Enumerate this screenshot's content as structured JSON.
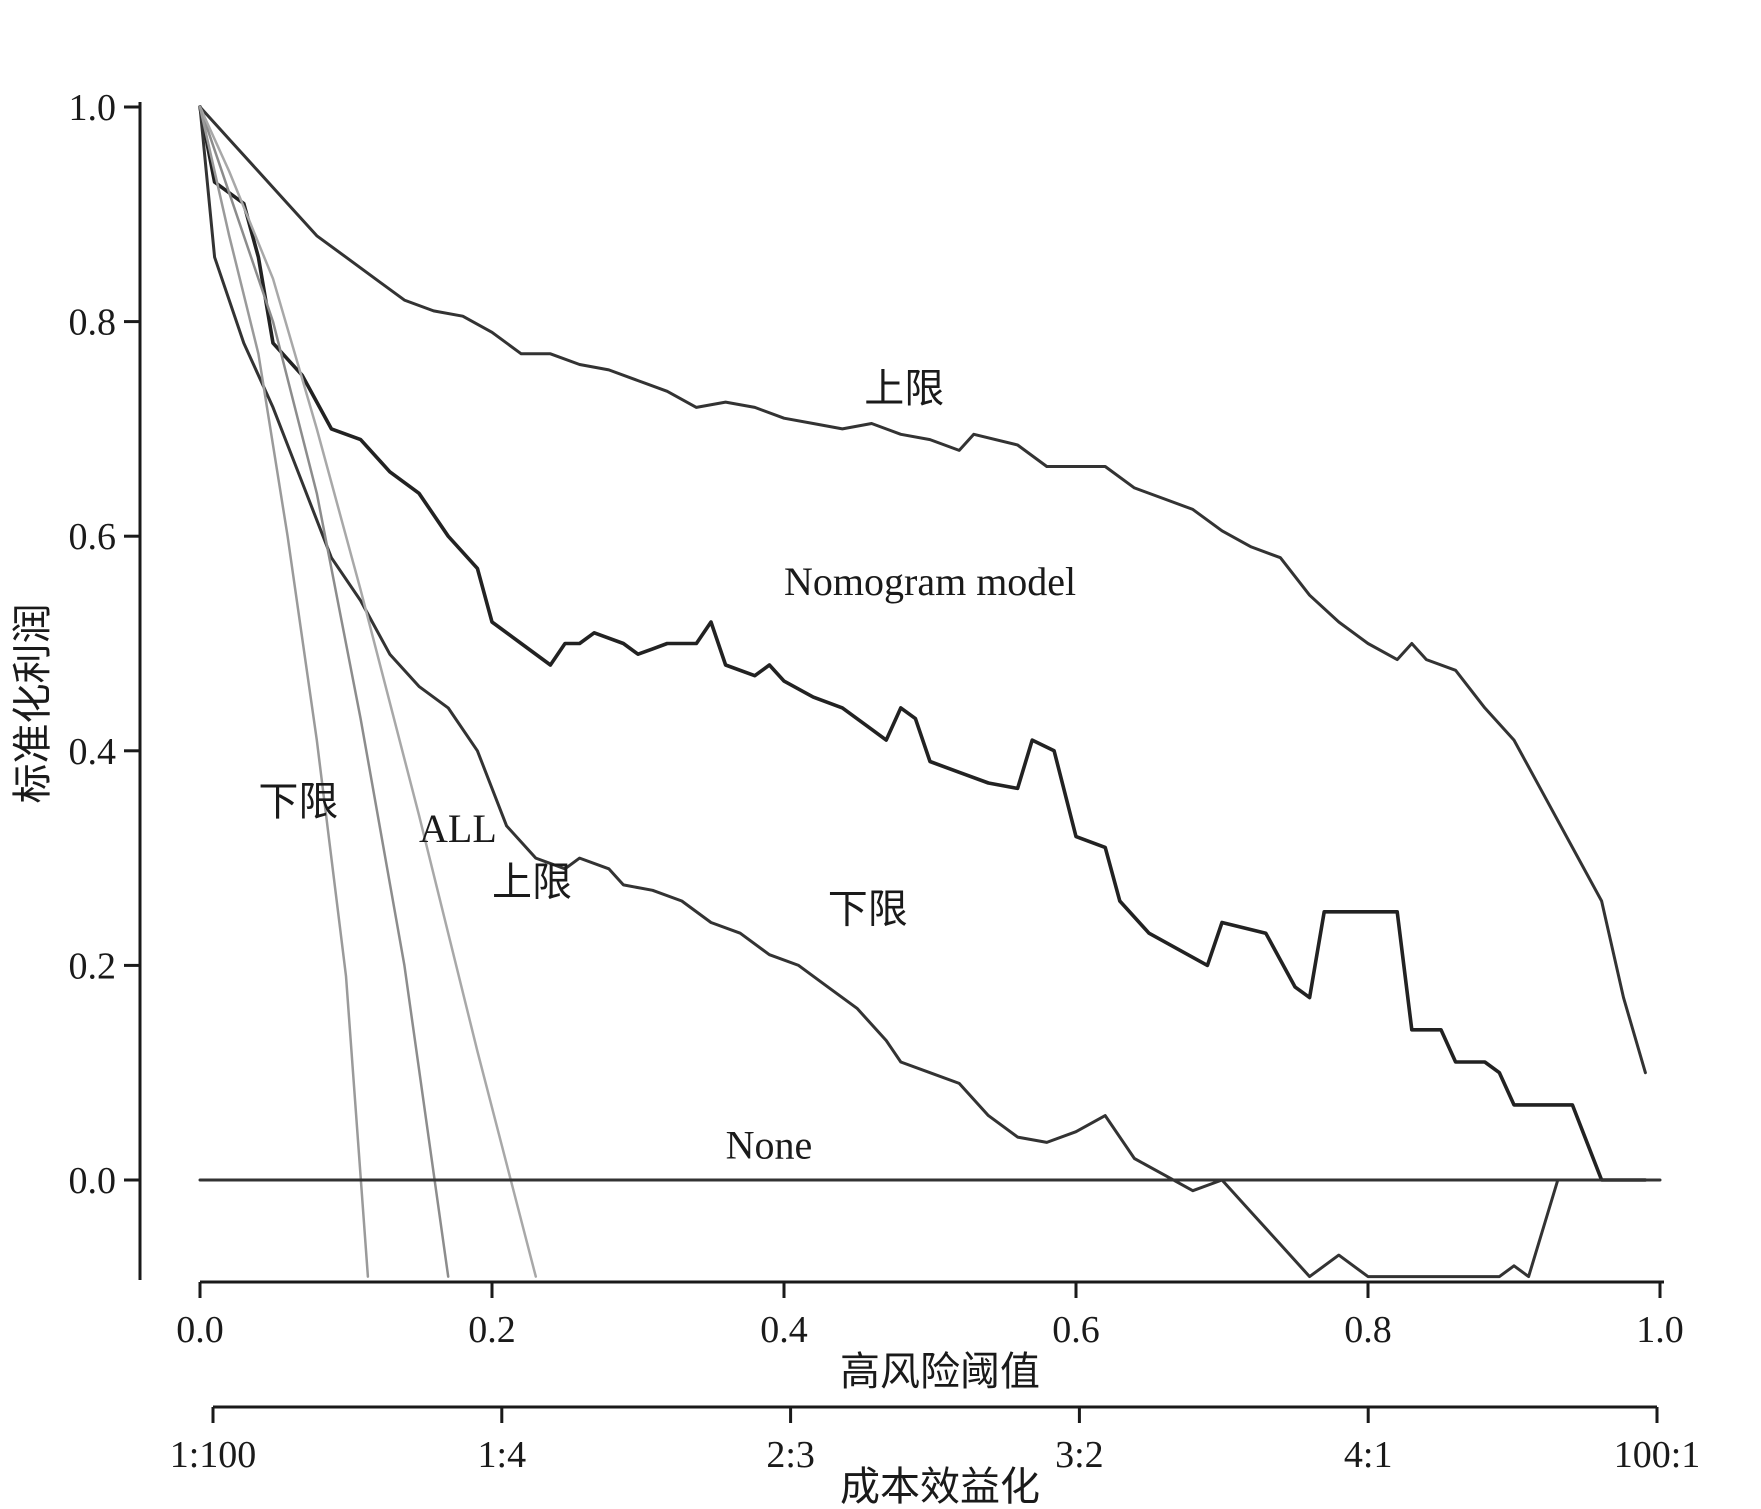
{
  "chart_data": {
    "type": "line",
    "title": "",
    "xlabel": "高风险阈值",
    "ylabel": "标准化利润",
    "x2label": "成本效益化",
    "xlim": [
      0,
      1
    ],
    "ylim": [
      -0.09,
      1.0
    ],
    "x_ticks": [
      "0.0",
      "0.2",
      "0.4",
      "0.6",
      "0.8",
      "1.0"
    ],
    "y_ticks": [
      "0.0",
      "0.2",
      "0.4",
      "0.6",
      "0.8",
      "1.0"
    ],
    "x2_ticks": [
      "1:100",
      "1:4",
      "2:3",
      "3:2",
      "4:1",
      "100:1"
    ],
    "grid": false,
    "series": [
      {
        "label": "上限",
        "color": "#333333",
        "points": [
          [
            0.0,
            1.0
          ],
          [
            0.02,
            0.97
          ],
          [
            0.04,
            0.94
          ],
          [
            0.06,
            0.91
          ],
          [
            0.08,
            0.88
          ],
          [
            0.1,
            0.86
          ],
          [
            0.12,
            0.84
          ],
          [
            0.14,
            0.82
          ],
          [
            0.16,
            0.81
          ],
          [
            0.18,
            0.805
          ],
          [
            0.2,
            0.79
          ],
          [
            0.22,
            0.77
          ],
          [
            0.24,
            0.77
          ],
          [
            0.26,
            0.76
          ],
          [
            0.28,
            0.755
          ],
          [
            0.3,
            0.745
          ],
          [
            0.32,
            0.735
          ],
          [
            0.34,
            0.72
          ],
          [
            0.36,
            0.725
          ],
          [
            0.38,
            0.72
          ],
          [
            0.4,
            0.71
          ],
          [
            0.42,
            0.705
          ],
          [
            0.44,
            0.7
          ],
          [
            0.46,
            0.705
          ],
          [
            0.48,
            0.695
          ],
          [
            0.5,
            0.69
          ],
          [
            0.52,
            0.68
          ],
          [
            0.53,
            0.695
          ],
          [
            0.56,
            0.685
          ],
          [
            0.58,
            0.665
          ],
          [
            0.6,
            0.665
          ],
          [
            0.62,
            0.665
          ],
          [
            0.64,
            0.645
          ],
          [
            0.66,
            0.635
          ],
          [
            0.68,
            0.625
          ],
          [
            0.7,
            0.605
          ],
          [
            0.72,
            0.59
          ],
          [
            0.74,
            0.58
          ],
          [
            0.76,
            0.545
          ],
          [
            0.78,
            0.52
          ],
          [
            0.8,
            0.5
          ],
          [
            0.82,
            0.485
          ],
          [
            0.83,
            0.5
          ],
          [
            0.84,
            0.485
          ],
          [
            0.86,
            0.475
          ],
          [
            0.88,
            0.44
          ],
          [
            0.9,
            0.41
          ],
          [
            0.92,
            0.36
          ],
          [
            0.94,
            0.31
          ],
          [
            0.96,
            0.26
          ],
          [
            0.975,
            0.17
          ],
          [
            0.99,
            0.1
          ]
        ]
      },
      {
        "label": "Nomogram model",
        "color": "#222222",
        "points": [
          [
            0.0,
            1.0
          ],
          [
            0.01,
            0.93
          ],
          [
            0.03,
            0.91
          ],
          [
            0.04,
            0.86
          ],
          [
            0.05,
            0.78
          ],
          [
            0.07,
            0.75
          ],
          [
            0.09,
            0.7
          ],
          [
            0.11,
            0.69
          ],
          [
            0.13,
            0.66
          ],
          [
            0.15,
            0.64
          ],
          [
            0.17,
            0.6
          ],
          [
            0.19,
            0.57
          ],
          [
            0.2,
            0.52
          ],
          [
            0.22,
            0.5
          ],
          [
            0.24,
            0.48
          ],
          [
            0.25,
            0.5
          ],
          [
            0.26,
            0.5
          ],
          [
            0.27,
            0.51
          ],
          [
            0.29,
            0.5
          ],
          [
            0.3,
            0.49
          ],
          [
            0.31,
            0.495
          ],
          [
            0.32,
            0.5
          ],
          [
            0.34,
            0.5
          ],
          [
            0.35,
            0.52
          ],
          [
            0.36,
            0.48
          ],
          [
            0.38,
            0.47
          ],
          [
            0.39,
            0.48
          ],
          [
            0.4,
            0.465
          ],
          [
            0.42,
            0.45
          ],
          [
            0.44,
            0.44
          ],
          [
            0.46,
            0.42
          ],
          [
            0.47,
            0.41
          ],
          [
            0.48,
            0.44
          ],
          [
            0.49,
            0.43
          ],
          [
            0.5,
            0.39
          ],
          [
            0.52,
            0.38
          ],
          [
            0.54,
            0.37
          ],
          [
            0.56,
            0.365
          ],
          [
            0.57,
            0.41
          ],
          [
            0.585,
            0.4
          ],
          [
            0.6,
            0.32
          ],
          [
            0.62,
            0.31
          ],
          [
            0.63,
            0.26
          ],
          [
            0.65,
            0.23
          ],
          [
            0.67,
            0.215
          ],
          [
            0.69,
            0.2
          ],
          [
            0.7,
            0.24
          ],
          [
            0.73,
            0.23
          ],
          [
            0.75,
            0.18
          ],
          [
            0.76,
            0.17
          ],
          [
            0.77,
            0.25
          ],
          [
            0.82,
            0.25
          ],
          [
            0.83,
            0.14
          ],
          [
            0.85,
            0.14
          ],
          [
            0.86,
            0.11
          ],
          [
            0.88,
            0.11
          ],
          [
            0.89,
            0.1
          ],
          [
            0.9,
            0.07
          ],
          [
            0.94,
            0.07
          ],
          [
            0.96,
            0.0
          ],
          [
            0.99,
            0.0
          ]
        ]
      },
      {
        "label": "下限",
        "color": "#333333",
        "points": [
          [
            0.0,
            1.0
          ],
          [
            0.01,
            0.86
          ],
          [
            0.03,
            0.78
          ],
          [
            0.05,
            0.72
          ],
          [
            0.07,
            0.65
          ],
          [
            0.09,
            0.58
          ],
          [
            0.11,
            0.54
          ],
          [
            0.13,
            0.49
          ],
          [
            0.15,
            0.46
          ],
          [
            0.17,
            0.44
          ],
          [
            0.19,
            0.4
          ],
          [
            0.21,
            0.33
          ],
          [
            0.23,
            0.3
          ],
          [
            0.25,
            0.29
          ],
          [
            0.26,
            0.3
          ],
          [
            0.28,
            0.29
          ],
          [
            0.29,
            0.275
          ],
          [
            0.31,
            0.27
          ],
          [
            0.33,
            0.26
          ],
          [
            0.35,
            0.24
          ],
          [
            0.37,
            0.23
          ],
          [
            0.39,
            0.21
          ],
          [
            0.41,
            0.2
          ],
          [
            0.43,
            0.18
          ],
          [
            0.45,
            0.16
          ],
          [
            0.47,
            0.13
          ],
          [
            0.48,
            0.11
          ],
          [
            0.5,
            0.1
          ],
          [
            0.52,
            0.09
          ],
          [
            0.54,
            0.06
          ],
          [
            0.56,
            0.04
          ],
          [
            0.58,
            0.035
          ],
          [
            0.6,
            0.045
          ],
          [
            0.62,
            0.06
          ],
          [
            0.64,
            0.02
          ],
          [
            0.66,
            0.005
          ],
          [
            0.68,
            -0.01
          ],
          [
            0.7,
            0.0
          ],
          [
            0.72,
            -0.03
          ],
          [
            0.74,
            -0.06
          ],
          [
            0.76,
            -0.09
          ],
          [
            0.78,
            -0.07
          ],
          [
            0.8,
            -0.09
          ],
          [
            0.89,
            -0.09
          ],
          [
            0.9,
            -0.08
          ],
          [
            0.91,
            -0.09
          ],
          [
            0.93,
            0.0
          ]
        ]
      },
      {
        "label": "ALL",
        "color": "#8c8c8c",
        "points": [
          [
            0.0,
            1.0
          ],
          [
            0.02,
            0.92
          ],
          [
            0.05,
            0.8
          ],
          [
            0.08,
            0.64
          ],
          [
            0.11,
            0.43
          ],
          [
            0.14,
            0.2
          ],
          [
            0.17,
            -0.09
          ]
        ]
      },
      {
        "label": "上限",
        "color": "#a8a8a8",
        "points": [
          [
            0.0,
            1.0
          ],
          [
            0.02,
            0.94
          ],
          [
            0.05,
            0.84
          ],
          [
            0.08,
            0.7
          ],
          [
            0.11,
            0.55
          ],
          [
            0.15,
            0.34
          ],
          [
            0.19,
            0.12
          ],
          [
            0.23,
            -0.09
          ]
        ]
      },
      {
        "label": "下限",
        "color": "#9a9a9a",
        "points": [
          [
            0.0,
            1.0
          ],
          [
            0.02,
            0.88
          ],
          [
            0.04,
            0.77
          ],
          [
            0.06,
            0.6
          ],
          [
            0.08,
            0.41
          ],
          [
            0.1,
            0.19
          ],
          [
            0.115,
            -0.09
          ]
        ]
      },
      {
        "label": "None",
        "color": "#333333",
        "points": [
          [
            0.0,
            0.0
          ],
          [
            1.0,
            0.0
          ]
        ]
      }
    ],
    "annotations": [
      {
        "text": "上限",
        "x": 0.455,
        "y": 0.725
      },
      {
        "text": "Nomogram model",
        "x": 0.4,
        "y": 0.545
      },
      {
        "text": "下限",
        "x": 0.43,
        "y": 0.24
      },
      {
        "text": "下限",
        "x": 0.04,
        "y": 0.34
      },
      {
        "text": "ALL",
        "x": 0.15,
        "y": 0.315
      },
      {
        "text": "上限",
        "x": 0.2,
        "y": 0.265
      },
      {
        "text": "None",
        "x": 0.36,
        "y": 0.02
      }
    ]
  }
}
